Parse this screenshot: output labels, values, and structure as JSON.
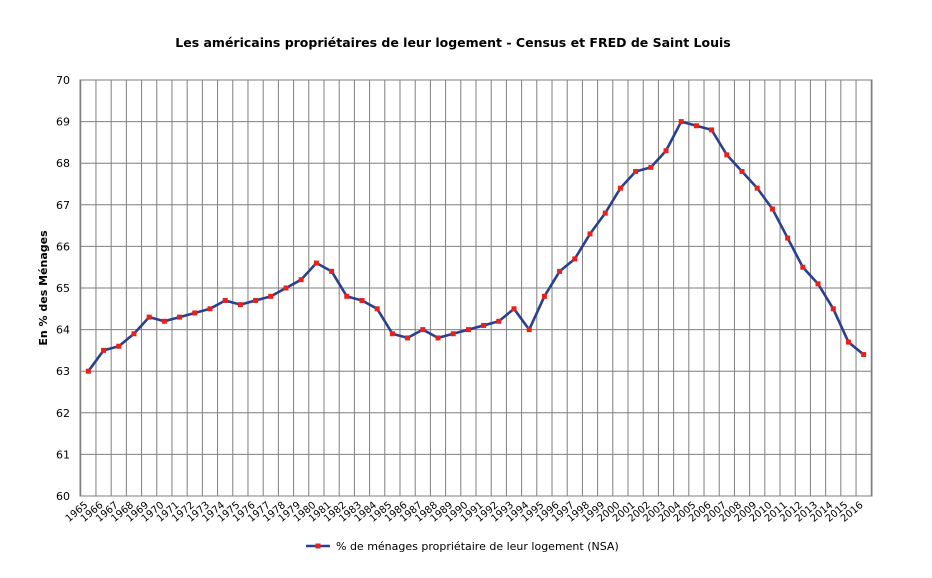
{
  "chart_data": {
    "type": "line",
    "title": "Les américains propriétaires de leur logement - Census et FRED de Saint Louis",
    "xlabel": "",
    "ylabel": "En % des Ménages",
    "ylim": [
      60,
      70
    ],
    "yticks": [
      60,
      61,
      62,
      63,
      64,
      65,
      66,
      67,
      68,
      69,
      70
    ],
    "grid": true,
    "legend_position": "bottom",
    "colors": {
      "line": "#2b3f8f",
      "marker": "#e8211b",
      "grid": "#7f7f7f"
    },
    "categories": [
      "1965",
      "1966",
      "1967",
      "1968",
      "1969",
      "1970",
      "1971",
      "1972",
      "1973",
      "1974",
      "1975",
      "1976",
      "1977",
      "1978",
      "1979",
      "1980",
      "1981",
      "1982",
      "1983",
      "1984",
      "1985",
      "1986",
      "1987",
      "1988",
      "1989",
      "1990",
      "1991",
      "1992",
      "1993",
      "1994",
      "1995",
      "1996",
      "1997",
      "1998",
      "1999",
      "2000",
      "2001",
      "2002",
      "2003",
      "2004",
      "2005",
      "2006",
      "2007",
      "2008",
      "2009",
      "2010",
      "2011",
      "2012",
      "2013",
      "2014",
      "2015",
      "2016"
    ],
    "series": [
      {
        "name": "% de ménages propriétaire de leur logement (NSA)",
        "values": [
          63.0,
          63.5,
          63.6,
          63.9,
          64.3,
          64.2,
          64.3,
          64.4,
          64.5,
          64.7,
          64.6,
          64.7,
          64.8,
          65.0,
          65.2,
          65.6,
          65.4,
          64.8,
          64.7,
          64.5,
          63.9,
          63.8,
          64.0,
          63.8,
          63.9,
          64.0,
          64.1,
          64.2,
          64.5,
          64.0,
          64.8,
          65.4,
          65.7,
          66.3,
          66.8,
          67.4,
          67.8,
          67.9,
          68.3,
          69.0,
          68.9,
          68.8,
          68.2,
          67.8,
          67.4,
          66.9,
          66.2,
          65.5,
          65.1,
          64.5,
          63.7,
          63.4
        ]
      }
    ]
  }
}
